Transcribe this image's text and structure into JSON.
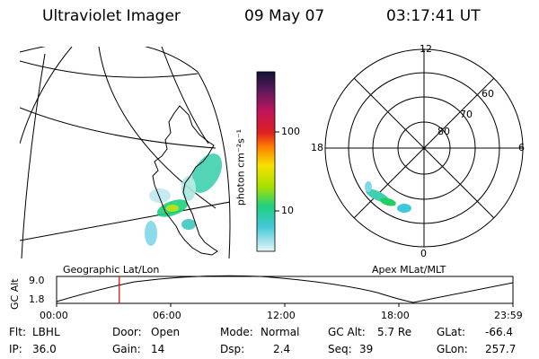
{
  "header": {
    "instrument": "Ultraviolet Imager",
    "date": "09 May 07",
    "time": "03:17:41 UT"
  },
  "colorbar": {
    "unit_label": "photon cm⁻²s⁻¹",
    "ticks": [
      "100",
      "10"
    ],
    "colors": [
      "#111133",
      "#5a1a5c",
      "#c0145a",
      "#e02020",
      "#ff8000",
      "#f8e000",
      "#a8e000",
      "#30d0a0",
      "#40c8d8",
      "#e8f4f8"
    ]
  },
  "geo_map": {
    "label": "Geographic Lat/Lon"
  },
  "polar_plot": {
    "label": "Apex MLat/MLT",
    "mlt_labels": {
      "top": "12",
      "left": "18",
      "right": "6",
      "bottom": "0"
    },
    "lat_labels": [
      "60",
      "70",
      "80"
    ]
  },
  "orbit_plot": {
    "ylabel": "GC Alt",
    "ytick_top": "9.0",
    "ytick_bottom": "1.8",
    "xticks": [
      "00:00",
      "06:00",
      "12:00",
      "18:00",
      "23:59"
    ],
    "current_time_fraction": 0.1374
  },
  "info": {
    "flt_label": "Flt:",
    "flt_value": "LBHL",
    "ip_label": "IP:",
    "ip_value": "36.0",
    "door_label": "Door:",
    "door_value": "Open",
    "gain_label": "Gain:",
    "gain_value": "14",
    "mode_label": "Mode:",
    "mode_value": "Normal",
    "dsp_label": "Dsp:",
    "dsp_value": "2.4",
    "gcalt_label": "GC Alt:",
    "gcalt_value": "5.7 Re",
    "seq_label": "Seq:",
    "seq_value": "39",
    "glat_label": "GLat:",
    "glat_value": "-66.4",
    "glon_label": "GLon:",
    "glon_value": "257.7"
  },
  "colors": {
    "marker": "#e00000",
    "line": "#000000"
  }
}
